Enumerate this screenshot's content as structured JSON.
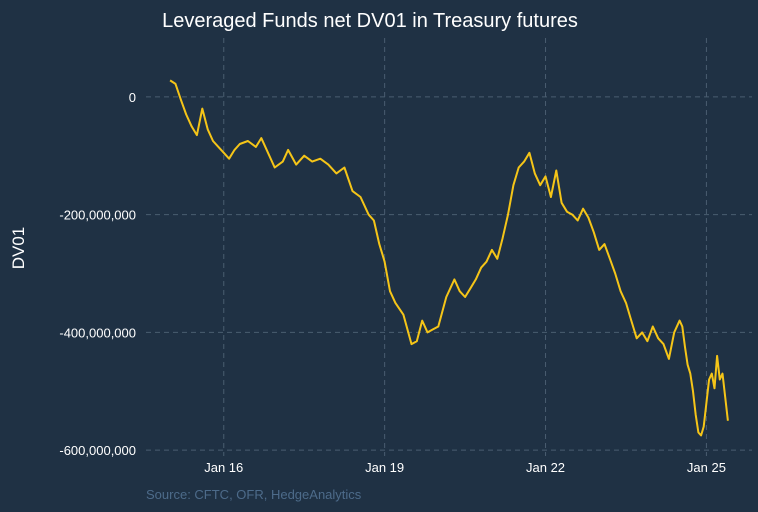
{
  "colors": {
    "background": "#1f3144",
    "line": "#f5c518",
    "grid": "#4a5d70",
    "text": "#ffffff",
    "source": "#4d6b8a"
  },
  "chart_data": {
    "type": "line",
    "title": "Leveraged Funds net DV01 in Treasury futures",
    "xlabel": "",
    "ylabel": "DV01",
    "source": "Source: CFTC, OFR, HedgeAnalytics",
    "grid": true,
    "legend": "none",
    "xlim": [
      2014.55,
      2025.85
    ],
    "ylim": [
      -610000000,
      100000000
    ],
    "x_ticks": [
      {
        "value": 2016,
        "label": "Jan 16"
      },
      {
        "value": 2019,
        "label": "Jan 19"
      },
      {
        "value": 2022,
        "label": "Jan 22"
      },
      {
        "value": 2025,
        "label": "Jan 25"
      }
    ],
    "y_ticks": [
      {
        "value": 0,
        "label": "0"
      },
      {
        "value": -200000000,
        "label": "-200,000,000"
      },
      {
        "value": -400000000,
        "label": "-400,000,000"
      },
      {
        "value": -600000000,
        "label": "-600,000,000"
      }
    ],
    "series": [
      {
        "x": [
          2015.0,
          2015.1,
          2015.2,
          2015.3,
          2015.4,
          2015.5,
          2015.6,
          2015.7,
          2015.8,
          2015.9,
          2016.0,
          2016.1,
          2016.2,
          2016.3,
          2016.45,
          2016.6,
          2016.7,
          2016.8,
          2016.95,
          2017.1,
          2017.2,
          2017.35,
          2017.5,
          2017.65,
          2017.8,
          2017.95,
          2018.1,
          2018.25,
          2018.4,
          2018.55,
          2018.7,
          2018.8,
          2018.9,
          2018.95,
          2019.0,
          2019.1,
          2019.2,
          2019.35,
          2019.5,
          2019.6,
          2019.7,
          2019.8,
          2019.9,
          2020.0,
          2020.15,
          2020.3,
          2020.4,
          2020.5,
          2020.6,
          2020.7,
          2020.8,
          2020.9,
          2021.0,
          2021.1,
          2021.2,
          2021.3,
          2021.4,
          2021.5,
          2021.6,
          2021.7,
          2021.8,
          2021.9,
          2022.0,
          2022.1,
          2022.2,
          2022.3,
          2022.4,
          2022.5,
          2022.6,
          2022.7,
          2022.8,
          2022.9,
          2023.0,
          2023.1,
          2023.2,
          2023.3,
          2023.4,
          2023.5,
          2023.6,
          2023.7,
          2023.8,
          2023.9,
          2024.0,
          2024.1,
          2024.2,
          2024.3,
          2024.4,
          2024.5,
          2024.55,
          2024.6,
          2024.65,
          2024.7,
          2024.75,
          2024.8,
          2024.85,
          2024.9,
          2024.95,
          2025.0,
          2025.05,
          2025.1,
          2025.15,
          2025.2,
          2025.25,
          2025.3,
          2025.35,
          2025.4
        ],
        "y": [
          28000000,
          22000000,
          -5000000,
          -30000000,
          -50000000,
          -65000000,
          -20000000,
          -55000000,
          -75000000,
          -85000000,
          -95000000,
          -105000000,
          -90000000,
          -80000000,
          -75000000,
          -85000000,
          -70000000,
          -90000000,
          -120000000,
          -110000000,
          -90000000,
          -115000000,
          -100000000,
          -110000000,
          -105000000,
          -115000000,
          -130000000,
          -120000000,
          -160000000,
          -170000000,
          -200000000,
          -210000000,
          -250000000,
          -265000000,
          -280000000,
          -330000000,
          -350000000,
          -370000000,
          -420000000,
          -415000000,
          -380000000,
          -400000000,
          -395000000,
          -390000000,
          -340000000,
          -310000000,
          -330000000,
          -340000000,
          -325000000,
          -310000000,
          -290000000,
          -280000000,
          -260000000,
          -275000000,
          -240000000,
          -200000000,
          -150000000,
          -120000000,
          -110000000,
          -95000000,
          -130000000,
          -150000000,
          -135000000,
          -170000000,
          -125000000,
          -180000000,
          -195000000,
          -200000000,
          -210000000,
          -190000000,
          -205000000,
          -230000000,
          -260000000,
          -250000000,
          -275000000,
          -300000000,
          -330000000,
          -350000000,
          -380000000,
          -410000000,
          -400000000,
          -415000000,
          -390000000,
          -410000000,
          -420000000,
          -445000000,
          -400000000,
          -380000000,
          -390000000,
          -425000000,
          -455000000,
          -470000000,
          -500000000,
          -540000000,
          -570000000,
          -575000000,
          -560000000,
          -520000000,
          -480000000,
          -470000000,
          -495000000,
          -440000000,
          -480000000,
          -470000000,
          -510000000,
          -550000000
        ]
      }
    ]
  }
}
